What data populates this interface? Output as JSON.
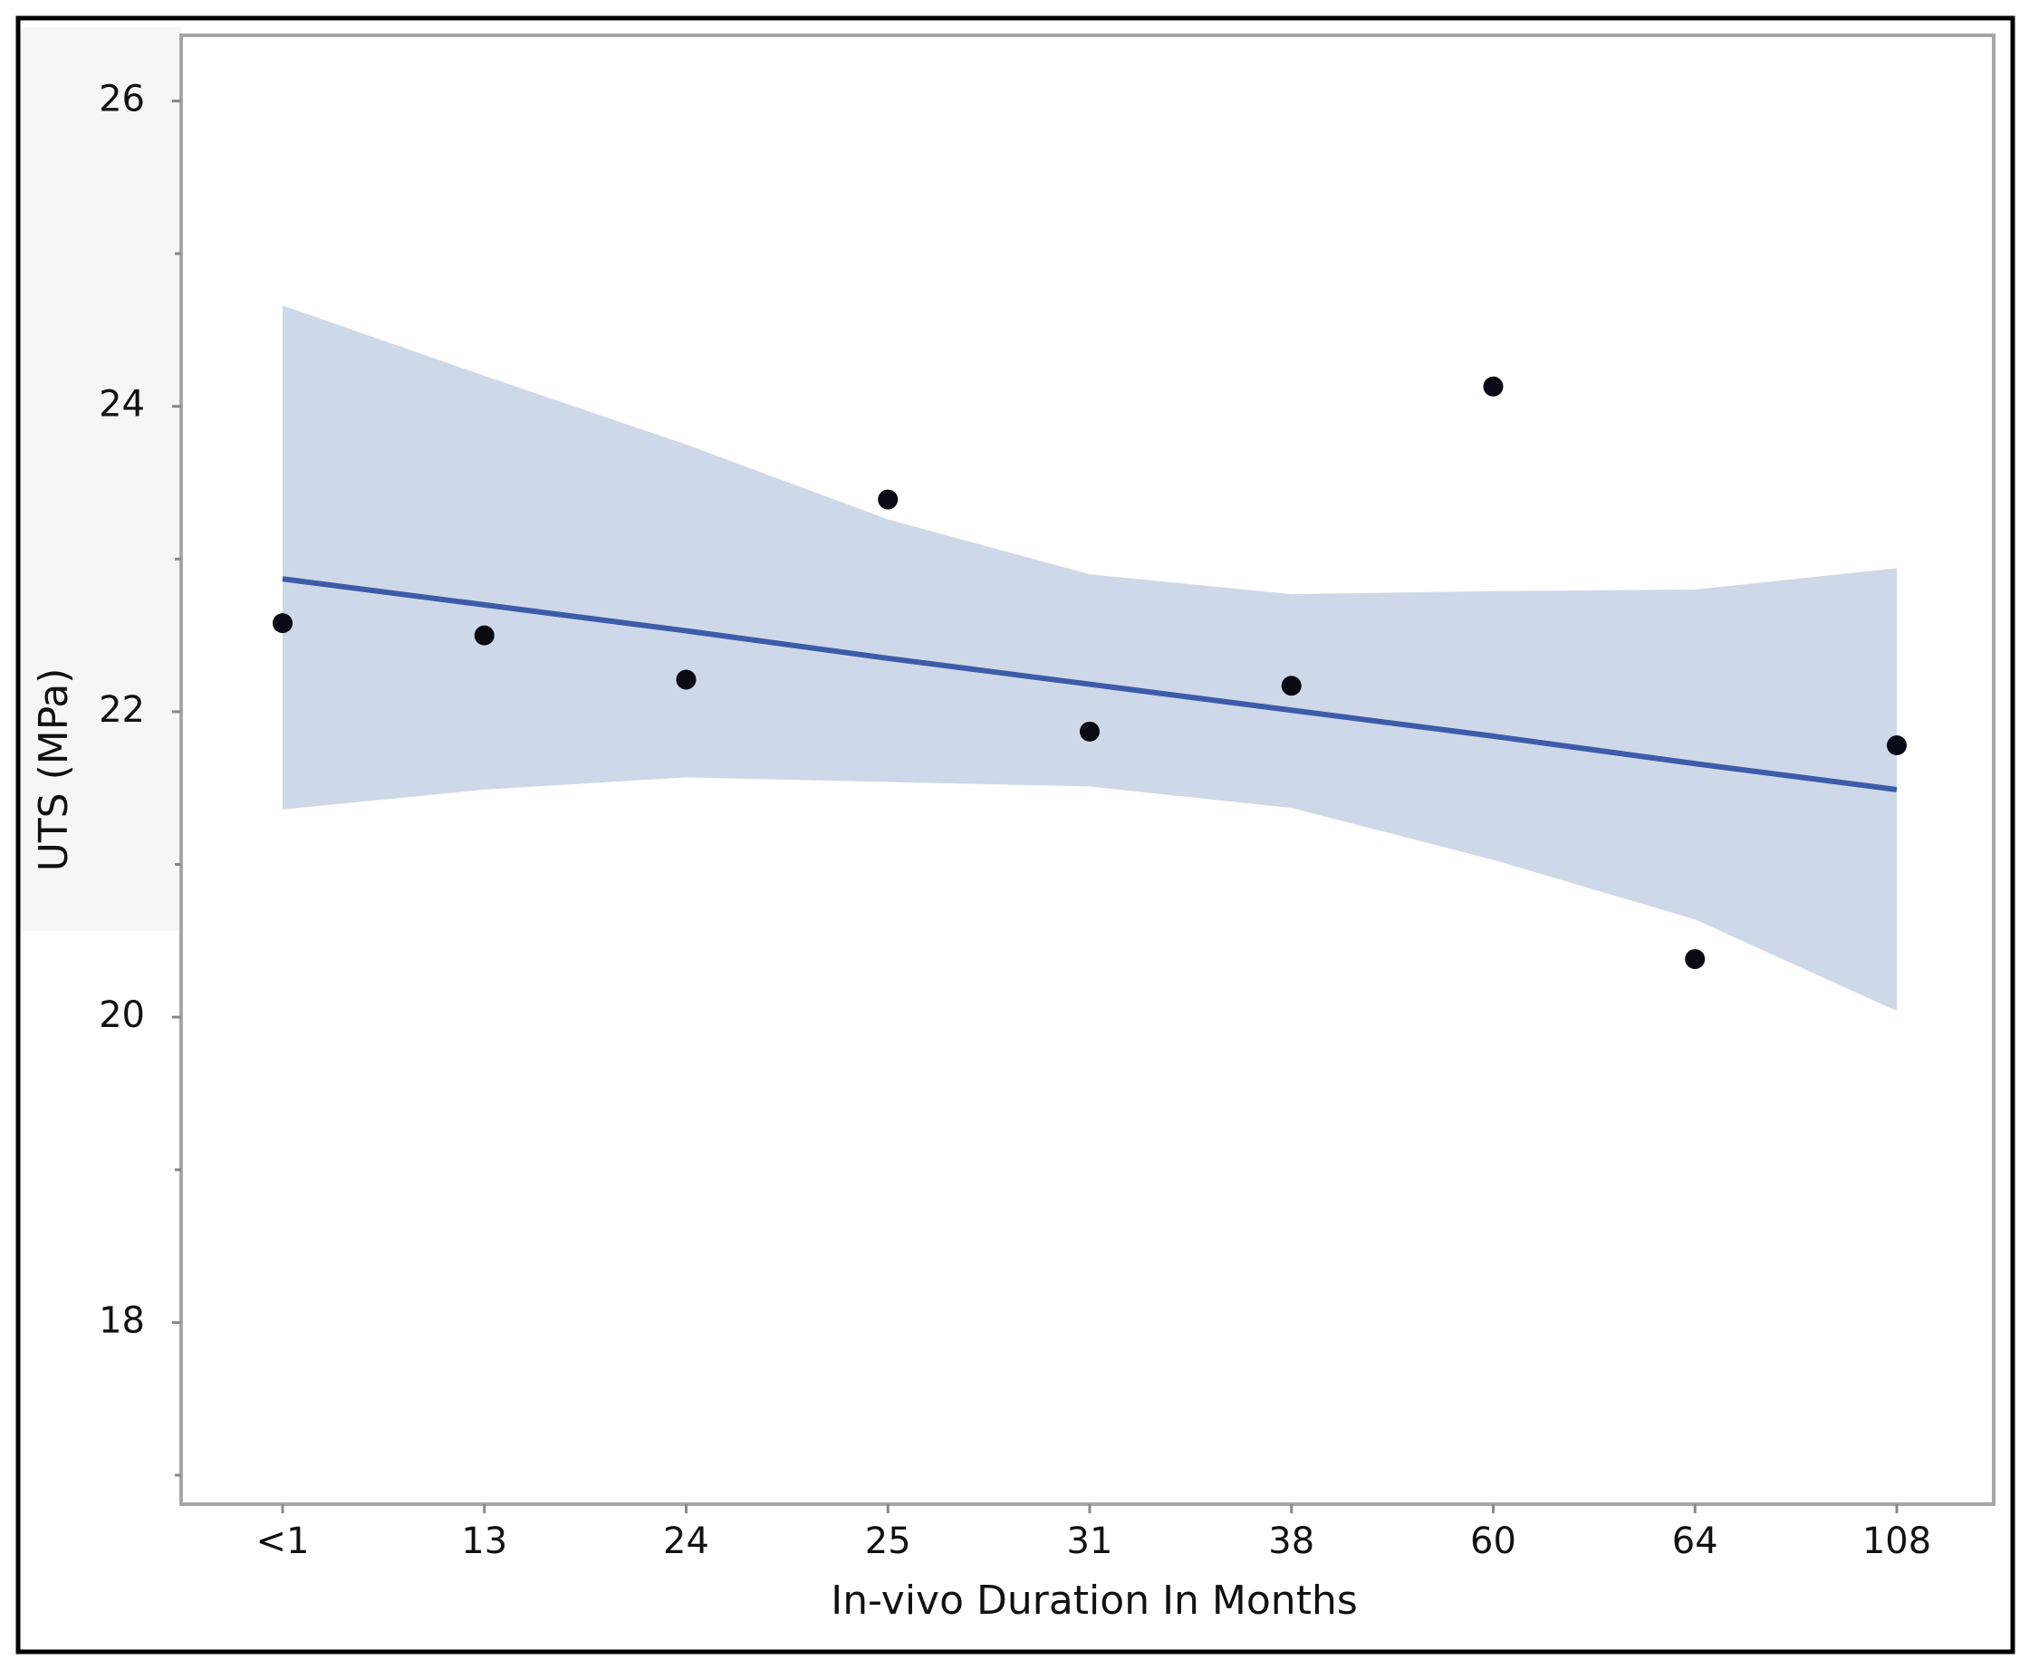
{
  "chart_data": {
    "type": "scatter",
    "x_label": "In-vivo Duration In Months",
    "y_label": "UTS (MPa)",
    "categories": [
      "<1",
      "13",
      "24",
      "25",
      "31",
      "38",
      "60",
      "64",
      "108"
    ],
    "values": [
      22.58,
      22.5,
      22.21,
      23.39,
      21.87,
      22.17,
      24.13,
      20.38,
      21.78
    ],
    "color": "#0a0a14",
    "fit": [
      22.87,
      22.7,
      22.53,
      22.35,
      22.18,
      22.01,
      21.84,
      21.66,
      21.49
    ],
    "fit_color": "#3d5ba8",
    "band_upper": [
      24.66,
      24.2,
      23.75,
      23.26,
      22.9,
      22.77,
      22.79,
      22.8,
      22.94
    ],
    "band_lower": [
      21.36,
      21.49,
      21.57,
      21.54,
      21.51,
      21.37,
      21.03,
      20.64,
      20.04
    ],
    "band_color": "#cfd8e8",
    "ylim": [
      16.81,
      26.43
    ],
    "yticks": [
      18,
      20,
      22,
      24,
      26
    ],
    "yminor_ticks": [
      17,
      19,
      21,
      23,
      25
    ],
    "grid": false
  }
}
